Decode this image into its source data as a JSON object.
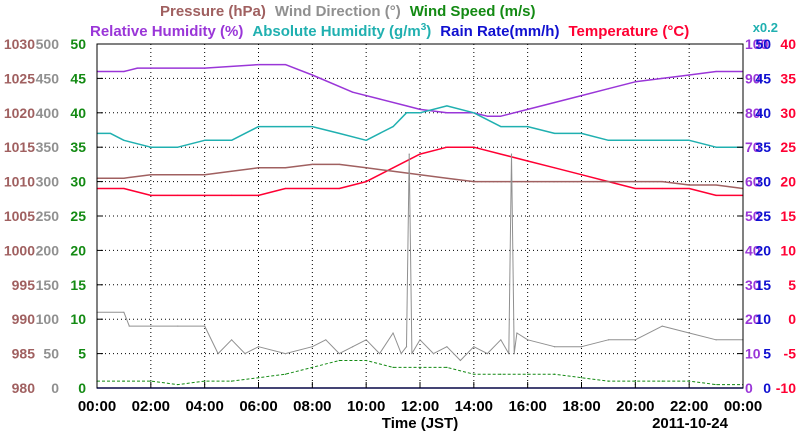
{
  "chart_data": {
    "type": "line",
    "date": "2011-10-24",
    "xlabel": "Time (JST)",
    "x_range_hours": [
      0,
      24
    ],
    "x_ticks": [
      "00:00",
      "02:00",
      "04:00",
      "06:00",
      "08:00",
      "10:00",
      "12:00",
      "14:00",
      "16:00",
      "18:00",
      "20:00",
      "22:00",
      "00:00"
    ],
    "grid": true,
    "legend_row1": [
      {
        "text": "Pressure (hPa)",
        "color": "#a06060"
      },
      {
        "text": "Wind Direction (°)",
        "color": "#909090"
      },
      {
        "text": "Wind Speed (m/s)",
        "color": "#138a13"
      }
    ],
    "legend_row2": [
      {
        "text": "Relative Humidity (%)",
        "color": "#9a36d8"
      },
      {
        "text": "Absolute Humidity (g/m",
        "sup": "3",
        "tail": ")",
        "color": "#20b0b0"
      },
      {
        "text": "Rain Rate(mm/h)",
        "color": "#1010d0"
      },
      {
        "text": "Temperature (°C)",
        "color": "#ff0033"
      }
    ],
    "scale_note": "x0.2",
    "axes": {
      "pressure": {
        "label": "Pressure (hPa)",
        "color": "#a06060",
        "range": [
          980,
          1030
        ],
        "ticks": [
          980,
          985,
          990,
          995,
          1000,
          1005,
          1010,
          1015,
          1020,
          1025,
          1030
        ]
      },
      "wind_direction": {
        "label": "Wind Direction (°)",
        "color": "#909090",
        "range": [
          0,
          500
        ],
        "ticks": [
          0,
          50,
          100,
          150,
          200,
          250,
          300,
          350,
          400,
          450,
          500
        ]
      },
      "wind_speed": {
        "label": "Wind Speed (m/s)",
        "color": "#138a13",
        "range": [
          0,
          50
        ],
        "ticks": [
          0,
          5,
          10,
          15,
          20,
          25,
          30,
          35,
          40,
          45,
          50
        ]
      },
      "relative_humidity": {
        "label": "Relative Humidity (%)",
        "color": "#9a36d8",
        "range": [
          0,
          100
        ],
        "ticks": [
          0,
          10,
          20,
          30,
          40,
          50,
          60,
          70,
          80,
          90,
          100
        ]
      },
      "rain_rate": {
        "label": "Rain Rate(mm/h)",
        "color": "#1010d0",
        "range": [
          0,
          50
        ],
        "ticks": [
          0,
          5,
          10,
          15,
          20,
          25,
          30,
          35,
          40,
          45,
          50
        ]
      },
      "temperature": {
        "label": "Temperature (°C)",
        "color": "#ff0033",
        "range": [
          -10,
          40
        ],
        "ticks": [
          -10,
          -5,
          0,
          5,
          10,
          15,
          20,
          25,
          30,
          35,
          40
        ]
      }
    },
    "series": [
      {
        "name": "Relative Humidity (%)",
        "color": "#9a36d8",
        "axis": "relative_humidity",
        "x": [
          0,
          1,
          1.5,
          4,
          6,
          7,
          8,
          9.5,
          10.5,
          11.5,
          12,
          13,
          14,
          14.5,
          15,
          16,
          17,
          18,
          19,
          20,
          21,
          22,
          23,
          24
        ],
        "y": [
          92,
          92,
          93,
          93,
          94,
          94,
          91,
          86,
          84,
          82,
          81,
          80,
          80,
          79,
          79,
          81,
          83,
          85,
          87,
          89,
          90,
          91,
          92,
          92
        ]
      },
      {
        "name": "Absolute Humidity (g/m3)",
        "color": "#20b0b0",
        "axis": "wind_speed",
        "x": [
          0,
          0.5,
          1,
          2,
          3,
          4,
          5,
          5.5,
          6,
          7,
          8,
          9,
          10,
          10.5,
          11,
          11.5,
          12,
          13,
          14,
          15,
          16,
          17,
          18,
          19,
          20,
          21,
          22,
          23,
          24
        ],
        "y": [
          37,
          37,
          36,
          35,
          35,
          36,
          36,
          37,
          38,
          38,
          38,
          37,
          36,
          37,
          38,
          40,
          40,
          41,
          40,
          38,
          38,
          37,
          37,
          36,
          36,
          36,
          36,
          35,
          35
        ]
      },
      {
        "name": "Temperature (°C)",
        "color": "#ff0033",
        "axis": "temperature",
        "x": [
          0,
          1,
          2,
          3,
          4,
          5,
          6,
          7,
          8,
          9,
          10,
          11,
          12,
          13,
          14,
          15,
          16,
          17,
          18,
          19,
          20,
          21,
          22,
          23,
          24
        ],
        "y": [
          19,
          19,
          18,
          18,
          18,
          18,
          18,
          19,
          19,
          19,
          20,
          22,
          24,
          25,
          25,
          24,
          23,
          22,
          21,
          20,
          19,
          19,
          19,
          18,
          18
        ]
      },
      {
        "name": "Pressure (hPa)",
        "color": "#a06060",
        "axis": "pressure",
        "x": [
          0,
          1,
          2,
          3,
          4,
          5,
          6,
          7,
          8,
          9,
          10,
          11,
          12,
          13,
          14,
          15,
          16,
          17,
          18,
          19,
          20,
          21,
          22,
          23,
          24
        ],
        "y": [
          1010.5,
          1010.5,
          1011,
          1011,
          1011,
          1011.5,
          1012,
          1012,
          1012.5,
          1012.5,
          1012,
          1011.5,
          1011,
          1010.5,
          1010,
          1010,
          1010,
          1010,
          1010,
          1010,
          1010,
          1010,
          1009.5,
          1009.5,
          1009
        ]
      },
      {
        "name": "Wind Direction (°)",
        "color": "#909090",
        "axis": "wind_direction",
        "x": [
          0,
          1,
          1.2,
          2,
          3,
          4,
          4.5,
          5,
          5.5,
          6,
          7,
          8,
          8.5,
          9,
          9.5,
          10,
          10.5,
          11,
          11.3,
          11.5,
          11.6,
          11.7,
          12,
          12.5,
          13,
          13.5,
          14,
          14.5,
          15,
          15.3,
          15.4,
          15.5,
          15.6,
          16,
          17,
          18,
          19,
          20,
          21,
          22,
          23,
          24
        ],
        "y": [
          110,
          110,
          90,
          90,
          90,
          90,
          50,
          70,
          50,
          60,
          50,
          60,
          70,
          50,
          60,
          70,
          50,
          80,
          50,
          60,
          340,
          50,
          70,
          50,
          60,
          40,
          60,
          50,
          70,
          50,
          340,
          50,
          80,
          70,
          60,
          60,
          70,
          70,
          90,
          80,
          70,
          70
        ]
      },
      {
        "name": "Wind Speed (m/s)",
        "color": "#138a13",
        "axis": "wind_speed",
        "x": [
          0,
          1,
          2,
          3,
          4,
          5,
          6,
          7,
          8,
          9,
          10,
          11,
          12,
          13,
          14,
          15,
          16,
          17,
          18,
          19,
          20,
          21,
          22,
          23,
          24
        ],
        "y": [
          1,
          1,
          1,
          0.5,
          1,
          1,
          1.5,
          2,
          3,
          4,
          4,
          3,
          3,
          3,
          2,
          2,
          2,
          2,
          1.5,
          1,
          1,
          1,
          1,
          0.5,
          0.5
        ]
      },
      {
        "name": "Rain Rate(mm/h)",
        "color": "#1010d0",
        "axis": "rain_rate",
        "x": [
          0,
          24
        ],
        "y": [
          0,
          0
        ]
      }
    ]
  }
}
